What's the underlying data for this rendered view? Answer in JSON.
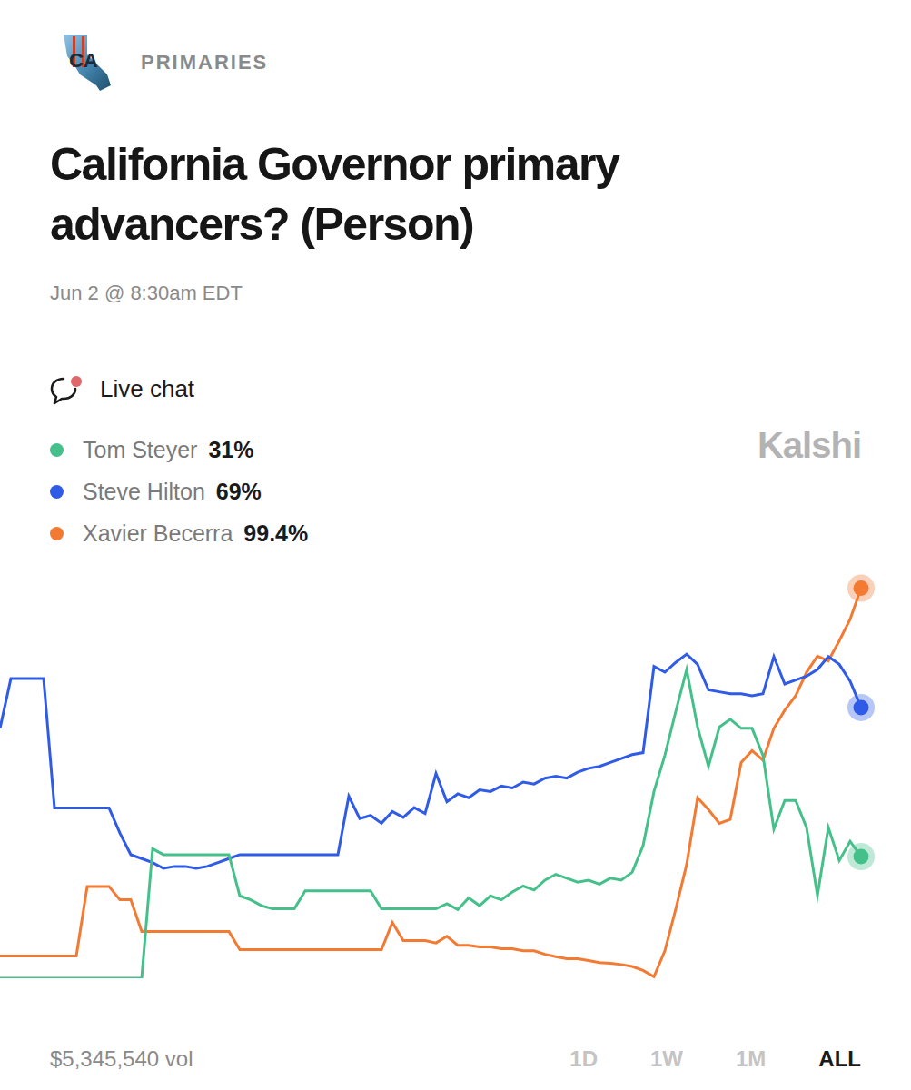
{
  "page": {
    "badge": "CA",
    "category": "PRIMARIES",
    "live_chat": "Live chat",
    "watermark": "Kalshi",
    "volume": "$5,345,540 vol",
    "ranges": [
      "1D",
      "1W",
      "1M",
      "ALL"
    ],
    "selected_range": "ALL"
  },
  "chart_data": {
    "type": "line",
    "title": "California Governor primary advancers? (Person)",
    "subtitle": "Jun 2 @ 8:30am EDT",
    "categories": [
      null,
      null,
      null,
      null,
      null,
      null,
      null,
      null,
      null,
      null,
      null,
      null,
      null,
      null,
      null,
      null,
      null,
      null,
      null,
      null,
      null,
      null,
      null,
      null,
      null,
      null,
      null,
      null,
      null,
      null,
      null,
      null,
      null,
      null,
      null,
      null,
      null,
      null,
      null,
      null,
      null,
      null,
      null,
      null,
      null,
      null,
      null,
      null,
      null,
      null,
      null,
      null,
      null,
      null,
      null,
      null,
      null,
      null,
      null,
      null,
      null,
      null,
      null,
      null,
      null,
      null,
      null,
      null,
      null,
      null,
      null,
      null,
      null,
      null,
      null,
      null,
      null,
      null,
      null,
      null
    ],
    "series": [
      {
        "name": "Tom Steyer",
        "color": "#45c08a",
        "current": 31,
        "current_label": "31%",
        "values": [
          0,
          0,
          0,
          0,
          0,
          0,
          0,
          0,
          0,
          0,
          0,
          0,
          0,
          0,
          33,
          31.5,
          31.5,
          31.5,
          31.5,
          31.5,
          31.5,
          31.5,
          21,
          20,
          18.5,
          17.7,
          17.7,
          17.7,
          22.3,
          22.3,
          22.3,
          22.3,
          22.3,
          22.3,
          22.3,
          17.7,
          17.7,
          17.7,
          17.7,
          17.7,
          17.7,
          19,
          17.5,
          20.5,
          18.5,
          21,
          20,
          22,
          23.5,
          22.5,
          25,
          26.5,
          25.5,
          24.5,
          25,
          24,
          25.5,
          25,
          27,
          33.8,
          47.6,
          56.8,
          68,
          78.7,
          64,
          54,
          64,
          66,
          63.7,
          63.7,
          56.8,
          38,
          45.3,
          45.3,
          38.4,
          21.1,
          38.4,
          30,
          34.9,
          31
        ]
      },
      {
        "name": "Steve Hilton",
        "color": "#2f5be6",
        "current": 69,
        "current_label": "69%",
        "values": [
          63.7,
          76.4,
          76.4,
          76.4,
          76.4,
          43.4,
          43.4,
          43.4,
          43.4,
          43.4,
          43.4,
          37,
          31.5,
          30.5,
          29.5,
          28,
          28.5,
          28.5,
          28,
          28.5,
          29.5,
          30.5,
          31.5,
          31.5,
          31.5,
          31.5,
          31.5,
          31.5,
          31.5,
          31.5,
          31.5,
          31.5,
          46.4,
          40.7,
          41.5,
          39.5,
          42.5,
          41,
          43.5,
          42,
          52.2,
          45,
          47,
          46,
          48,
          47.6,
          49,
          48.5,
          50,
          49.5,
          51,
          51.5,
          51,
          52.5,
          53.5,
          54,
          55,
          56,
          57,
          57.5,
          79.5,
          78,
          80.5,
          82.6,
          80,
          73.5,
          73,
          72.5,
          72.5,
          72,
          72.5,
          82,
          75,
          76,
          77,
          78.7,
          82,
          80,
          75.7,
          69
        ]
      },
      {
        "name": "Xavier Becerra",
        "color": "#f27a33",
        "current": 99.4,
        "current_label": "99.4%",
        "values": [
          5.7,
          5.7,
          5.7,
          5.7,
          5.7,
          5.7,
          5.7,
          5.7,
          23.4,
          23.4,
          23.4,
          20,
          20,
          11.9,
          11.9,
          11.9,
          11.9,
          11.9,
          11.9,
          11.9,
          11.9,
          11.9,
          7.3,
          7.3,
          7.3,
          7.3,
          7.3,
          7.3,
          7.3,
          7.3,
          7.3,
          7.3,
          7.3,
          7.3,
          7.3,
          7.3,
          14.2,
          9.6,
          9.6,
          9.6,
          9,
          10.7,
          8.4,
          8.4,
          8,
          8,
          7.5,
          7.5,
          7,
          7,
          6.1,
          5.5,
          5,
          5,
          4.5,
          4,
          3.8,
          3.5,
          3,
          2,
          0.4,
          7,
          17.6,
          29,
          46,
          43,
          39.5,
          40.5,
          55,
          58,
          55.6,
          63.7,
          68.3,
          72,
          78,
          82.1,
          80.9,
          86,
          91.5,
          99.4
        ]
      }
    ],
    "ylim": [
      0,
      100
    ],
    "grid": false,
    "tick_labels": false,
    "legend": "top-left"
  }
}
